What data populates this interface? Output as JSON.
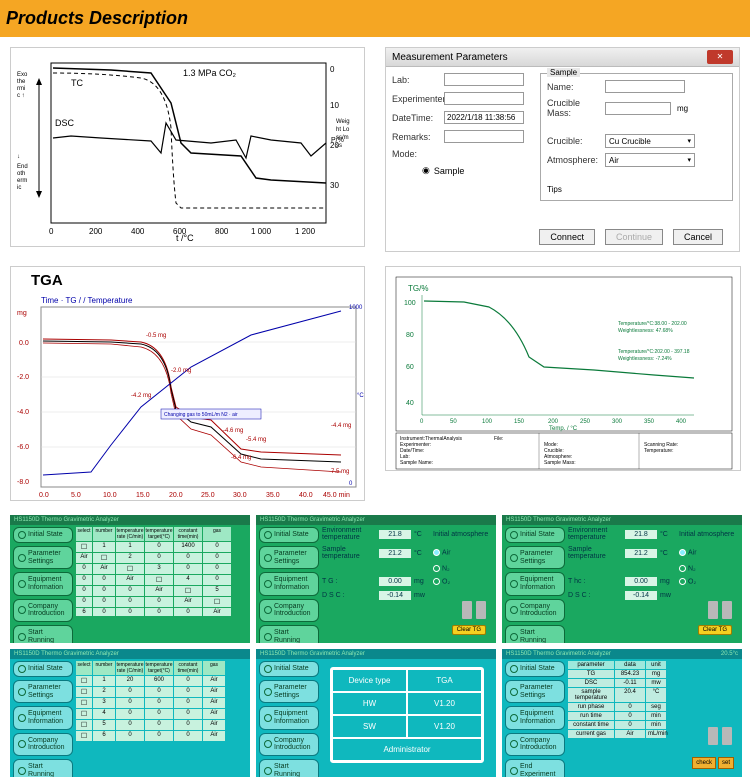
{
  "header": {
    "title": "Products Description"
  },
  "dialog": {
    "title": "Measurement Parameters",
    "left_fields": {
      "lab": "Lab:",
      "experimenter": "Experimenter:",
      "datetime_label": "DateTime:",
      "datetime_value": "2022/1/18 11:38:56",
      "remarks": "Remarks:",
      "mode": "Mode:",
      "sample_radio": "Sample"
    },
    "sample_group": {
      "legend": "Sample",
      "name": "Name:",
      "crucible_mass": "Crucible Mass:",
      "crucible_mass_unit": "mg",
      "crucible_label": "Crucible:",
      "crucible_value": "Cu Crucible",
      "atmosphere_label": "Atmosphere:",
      "atmosphere_value": "Air",
      "tips": "Tips"
    },
    "buttons": {
      "connect": "Connect",
      "continue": "Continue",
      "cancel": "Cancel"
    }
  },
  "chart1": {
    "title": "1.3 MPa CO₂",
    "y_left_top": "Exo\\nthe\\nrmi\\nc",
    "y_left_bot": "End\\noth\\nerm\\nic",
    "y_right_label": "Weig\\nht Lo\\nss/m\\nss",
    "x_label": "t /°C",
    "tc_label": "TC",
    "dsc_label": "DSC",
    "x_ticks": [
      "0",
      "200",
      "400",
      "600",
      "800",
      "1 000",
      "1 200"
    ],
    "y_right_ticks": [
      "0",
      "10",
      "20",
      "30"
    ]
  },
  "chart2": {
    "tga_label": "TGA",
    "subtitle": "Time · TG / / Temperature",
    "y_left_ticks": [
      "mg",
      "0.0",
      "-2.0",
      "-4.0",
      "-6.0",
      "-8.0"
    ],
    "x_ticks": [
      "0.0",
      "5.0",
      "10.0",
      "15.0",
      "20.0",
      "25.0",
      "30.0",
      "35.0",
      "40.0",
      "45.0 min"
    ],
    "anno1": "-0.5 mg",
    "anno2": "-2.0 mg",
    "anno3": "-4.2 mg",
    "anno_box": "Changing gas to 50mL/m N2 · air",
    "anno4": "-4.6 mg",
    "anno5": "-5.4 mg",
    "anno6": "-6.4 mg",
    "anno7": "-4.4 mg",
    "anno8": "-7.5 mg"
  },
  "chart3": {
    "y_label": "TG/%",
    "x_label": "Temp. / °C",
    "y_ticks": [
      "100",
      "80",
      "60",
      "40"
    ],
    "x_ticks": [
      "0",
      "50",
      "100",
      "150",
      "200",
      "250",
      "300",
      "350",
      "400"
    ],
    "anno1": "Temperature/°C:38.00 - 202.00\\nWeightlessness: 47.68%",
    "anno2": "Temperature/°C:202.00 - 397.18\\nWeightlessness: -7.24%",
    "meta": {
      "left": [
        "Instrument:ThermalAnalysis",
        "Experimenter:",
        "Date/Time:",
        "Lab:",
        "Sample Name:",
        "Remarks:"
      ],
      "mid": [
        "File:",
        "Mode:",
        "Crucible:",
        "Atmosphere:",
        "Sample Mass:",
        "Crucible Mass:"
      ],
      "right": [
        "Scanning Rate:",
        "Temperature:"
      ]
    }
  },
  "panels": {
    "side_green": [
      "Initial State",
      "Parameter Settings",
      "Equipment Information",
      "Company Introduction",
      "Start Running"
    ],
    "side_cyan_end": [
      "Initial State",
      "Parameter Settings",
      "Equipment Information",
      "Company Introduction",
      "End Experiment"
    ],
    "top_title": "HS1150D Thermo Gravimetric Analyzer",
    "temp_readout": "20.5°c",
    "table_headers": [
      "select",
      "number",
      "temperature rate (C/min)",
      "temperature target(°C)",
      "constant time(min)",
      "gas"
    ],
    "table_rows": [
      [
        "1",
        "1",
        "0",
        "1400",
        "0",
        "Air"
      ],
      [
        "2",
        "0",
        "0",
        "0",
        "0",
        "Air"
      ],
      [
        "3",
        "0",
        "0",
        "0",
        "0",
        "Air"
      ],
      [
        "4",
        "0",
        "0",
        "0",
        "0",
        "Air"
      ],
      [
        "5",
        "0",
        "0",
        "0",
        "0",
        "Air"
      ],
      [
        "6",
        "0",
        "0",
        "0",
        "0",
        "Air"
      ]
    ],
    "table_rows_b": [
      [
        "1",
        "20",
        "600",
        "0",
        "Air"
      ],
      [
        "2",
        "0",
        "0",
        "0",
        "Air"
      ],
      [
        "3",
        "0",
        "0",
        "0",
        "Air"
      ],
      [
        "4",
        "0",
        "0",
        "0",
        "Air"
      ],
      [
        "5",
        "0",
        "0",
        "0",
        "Air"
      ],
      [
        "6",
        "0",
        "0",
        "0",
        "Air"
      ]
    ],
    "env": {
      "env_temp_lbl": "Environment temperature",
      "env_temp": "21.8",
      "env_unit": "°C",
      "sample_temp_lbl": "Sample temperature",
      "sample_temp": "21.2",
      "tg_lbl": "T G :",
      "tg_val": "0.00",
      "tg_unit": "mg",
      "dsc_lbl": "D S C :",
      "dsc_val": "-0.14",
      "dsc_unit": "mw",
      "atmo_lbl": "Initial atmosphere",
      "air": "Air",
      "n2": "N₂",
      "o2": "O₂",
      "clear": "Clear TG"
    },
    "env3": {
      "ttc_lbl": "T hc :",
      "ttc_val": "0.00"
    },
    "device": {
      "h1": "Device type",
      "v1": "TGA",
      "h2": "HW",
      "v2": "V1.20",
      "h3": "SW",
      "v3": "V1.20",
      "h4": "Administrator",
      "v4": ""
    },
    "params": {
      "headers": [
        "parameter",
        "data",
        "unit"
      ],
      "rows": [
        [
          "TG",
          "854.23",
          "mg"
        ],
        [
          "DSC",
          "-0.11",
          "mw"
        ],
        [
          "sample temperature",
          "20.4",
          "°C"
        ],
        [
          "run phase",
          "0",
          "seg"
        ],
        [
          "run time",
          "0",
          "min"
        ],
        [
          "constant time",
          "0",
          "min"
        ],
        [
          "current gas",
          "Air",
          "mL/min"
        ]
      ],
      "check": "check",
      "set": "set"
    }
  }
}
